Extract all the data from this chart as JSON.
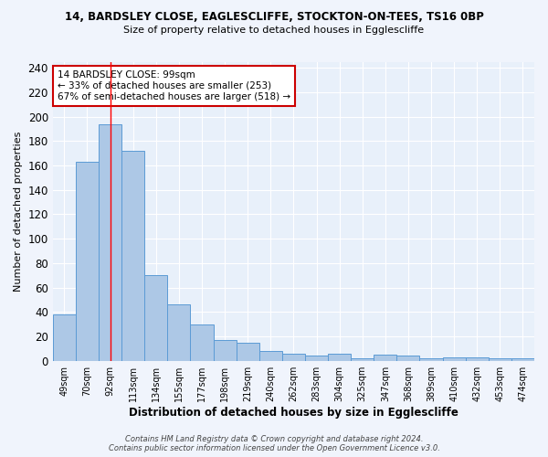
{
  "title1": "14, BARDSLEY CLOSE, EAGLESCLIFFE, STOCKTON-ON-TEES, TS16 0BP",
  "title2": "Size of property relative to detached houses in Egglescliffe",
  "xlabel": "Distribution of detached houses by size in Egglescliffe",
  "ylabel": "Number of detached properties",
  "footnote1": "Contains HM Land Registry data © Crown copyright and database right 2024.",
  "footnote2": "Contains public sector information licensed under the Open Government Licence v3.0.",
  "bar_labels": [
    "49sqm",
    "70sqm",
    "92sqm",
    "113sqm",
    "134sqm",
    "155sqm",
    "177sqm",
    "198sqm",
    "219sqm",
    "240sqm",
    "262sqm",
    "283sqm",
    "304sqm",
    "325sqm",
    "347sqm",
    "368sqm",
    "389sqm",
    "410sqm",
    "432sqm",
    "453sqm",
    "474sqm"
  ],
  "bar_values": [
    38,
    163,
    194,
    172,
    70,
    46,
    30,
    17,
    15,
    8,
    6,
    4,
    6,
    2,
    5,
    4,
    2,
    3,
    3,
    2,
    2
  ],
  "bar_color": "#adc8e6",
  "bar_edge_color": "#5b9bd5",
  "bg_color": "#e8f0fa",
  "grid_color": "#ffffff",
  "fig_bg_color": "#f0f4fc",
  "red_line_x": 2,
  "annotation_title": "14 BARDSLEY CLOSE: 99sqm",
  "annotation_line1": "← 33% of detached houses are smaller (253)",
  "annotation_line2": "67% of semi-detached houses are larger (518) →",
  "annotation_box_color": "#ffffff",
  "annotation_box_edge": "#cc0000",
  "ylim": [
    0,
    245
  ],
  "yticks": [
    0,
    20,
    40,
    60,
    80,
    100,
    120,
    140,
    160,
    180,
    200,
    220,
    240
  ]
}
